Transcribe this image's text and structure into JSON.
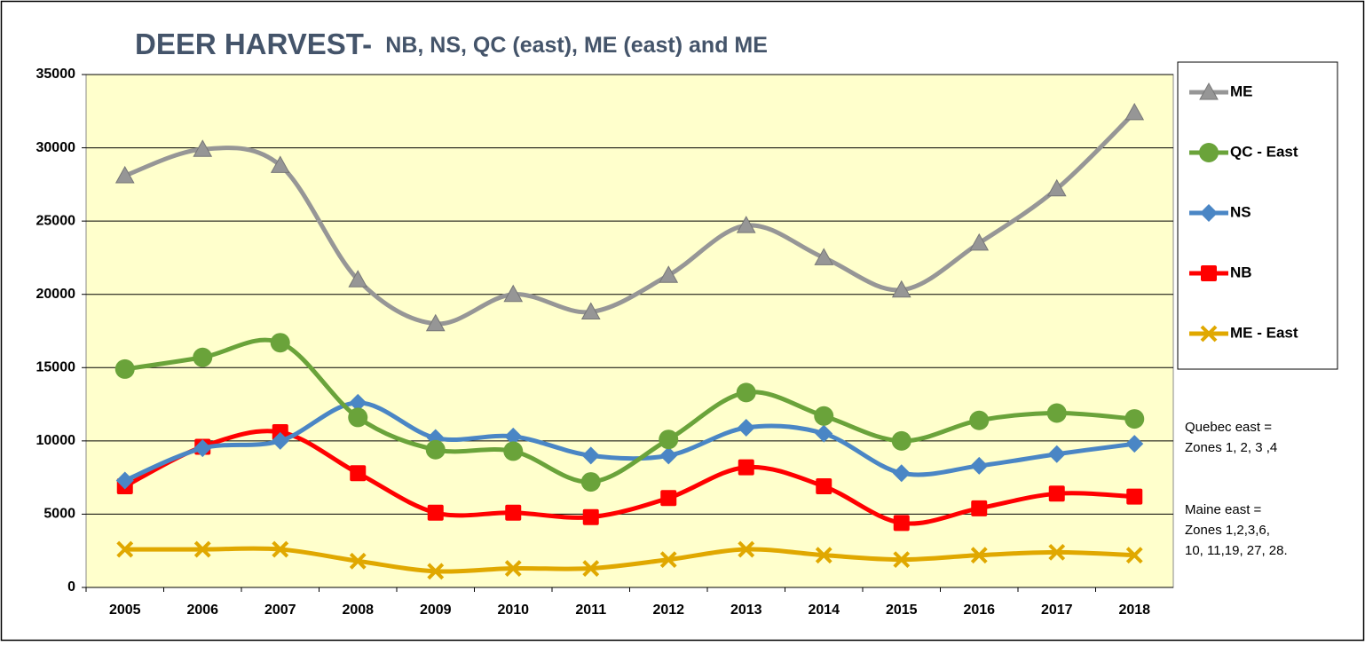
{
  "chart_data": {
    "type": "line",
    "title": "DEER HARVEST-",
    "subtitle": "NB, NS, QC (east), ME (east) and ME",
    "categories": [
      "2005",
      "2006",
      "2007",
      "2008",
      "2009",
      "2010",
      "2011",
      "2012",
      "2013",
      "2014",
      "2015",
      "2016",
      "2017",
      "2018"
    ],
    "series": [
      {
        "name": "ME",
        "color": "#969696",
        "marker": "triangle",
        "values": [
          28100,
          29900,
          28800,
          21000,
          18000,
          20000,
          18800,
          21300,
          24700,
          22500,
          20300,
          23500,
          27200,
          32400
        ]
      },
      {
        "name": "QC - East",
        "color": "#6aa33a",
        "marker": "circle",
        "values": [
          14900,
          15700,
          16700,
          11600,
          9400,
          9300,
          7200,
          10100,
          13300,
          11700,
          10000,
          11400,
          11900,
          11500
        ]
      },
      {
        "name": "NS",
        "color": "#4a86c5",
        "marker": "diamond",
        "values": [
          7300,
          9500,
          10000,
          12600,
          10200,
          10300,
          9000,
          9000,
          10900,
          10500,
          7800,
          8300,
          9100,
          9800
        ]
      },
      {
        "name": "NB",
        "color": "#ff0000",
        "marker": "square",
        "values": [
          6900,
          9600,
          10600,
          7800,
          5100,
          5100,
          4800,
          6100,
          8200,
          6900,
          4400,
          5400,
          6400,
          6200
        ]
      },
      {
        "name": "ME - East",
        "color": "#e0a800",
        "marker": "x",
        "values": [
          2600,
          2600,
          2600,
          1800,
          1100,
          1300,
          1300,
          1900,
          2600,
          2200,
          1900,
          2200,
          2400,
          2200
        ]
      }
    ],
    "ylim": [
      0,
      35000
    ],
    "yticks": [
      0,
      5000,
      10000,
      15000,
      20000,
      25000,
      30000,
      35000
    ],
    "grid": true,
    "smooth": true,
    "plot_background": "#ffffcc",
    "legend": "right",
    "annotations": [
      [
        "Quebec east =",
        "Zones 1, 2, 3 ,4"
      ],
      [
        "Maine east =",
        "Zones 1,2,3,6,",
        "10, 11,19, 27, 28."
      ]
    ]
  }
}
